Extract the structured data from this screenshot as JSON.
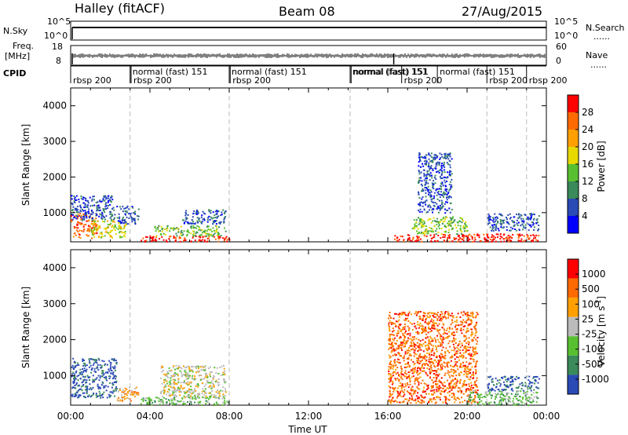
{
  "header": {
    "station": "Halley (fitACF)",
    "beam": "Beam 08",
    "date": "27/Aug/2015"
  },
  "strip_labels": {
    "nsky": "N.Sky",
    "nsky_ticks": [
      "10^5",
      "10^0"
    ],
    "nsearch": "N.Search",
    "nsearch_right_ticks": [
      "10^5",
      "10^0"
    ],
    "freq_line1": "Freq.",
    "freq_line2": "[MHz]",
    "freq_ticks": [
      "18",
      "8"
    ],
    "nave": "Nave",
    "nave_ticks": [
      "60",
      "0"
    ],
    "cpid": "CPID",
    "dots": "......"
  },
  "cpid_segments": [
    {
      "label": "rbsp 200",
      "row": 1
    },
    {
      "label": "normal (fast)  151",
      "row": 0
    },
    {
      "label": "rbsp 200",
      "row": 1
    },
    {
      "label": "normal (fast)  151",
      "row": 0
    },
    {
      "label": "rbsp 200",
      "row": 1
    },
    {
      "label": "normal (fast)  151",
      "row": 0
    },
    {
      "label": "normal (fast)  151",
      "row": 0
    },
    {
      "label": "rbsp 200",
      "row": 1
    },
    {
      "label": "normal (fast)  151",
      "row": 0
    },
    {
      "label": "rbsp 200",
      "row": 1
    },
    {
      "label": "rbsp 200",
      "row": 1
    }
  ],
  "chart_data": [
    {
      "type": "heatmap",
      "name": "power",
      "ylabel": "Slant Range [km]",
      "ylim": [
        180,
        4500
      ],
      "yticks": [
        "1000",
        "2000",
        "3000",
        "4000"
      ],
      "xlim_hours": [
        0,
        24
      ],
      "colorbar_label": "Power [dB]",
      "colorbar_ticks": [
        "4",
        "8",
        "12",
        "16",
        "20",
        "24",
        "28"
      ],
      "colors": [
        "#0000ff",
        "#2a4ab5",
        "#3a8a5a",
        "#58c030",
        "#e6d800",
        "#ffa000",
        "#ff6a00",
        "#ff0000"
      ],
      "regions": [
        {
          "t": [
            0.0,
            1.3
          ],
          "r": [
            300,
            1000
          ],
          "level": 6
        },
        {
          "t": [
            0.0,
            2.2
          ],
          "r": [
            800,
            1500
          ],
          "level": 1
        },
        {
          "t": [
            1.0,
            2.8
          ],
          "r": [
            300,
            800
          ],
          "level": 4
        },
        {
          "t": [
            2.3,
            3.4
          ],
          "r": [
            700,
            1200
          ],
          "level": 1
        },
        {
          "t": [
            3.5,
            8.0
          ],
          "r": [
            200,
            360
          ],
          "level": 7
        },
        {
          "t": [
            4.2,
            7.8
          ],
          "r": [
            360,
            650
          ],
          "level": 3
        },
        {
          "t": [
            5.6,
            7.8
          ],
          "r": [
            700,
            1100
          ],
          "level": 1
        },
        {
          "t": [
            16.3,
            23.6
          ],
          "r": [
            200,
            420
          ],
          "level": 7
        },
        {
          "t": [
            17.2,
            20.0
          ],
          "r": [
            420,
            900
          ],
          "level": 3
        },
        {
          "t": [
            17.5,
            19.2
          ],
          "r": [
            1000,
            2700
          ],
          "level": 1
        },
        {
          "t": [
            21.0,
            23.6
          ],
          "r": [
            500,
            1000
          ],
          "level": 1
        }
      ]
    },
    {
      "type": "heatmap",
      "name": "velocity",
      "ylabel": "Slant Range [km]",
      "ylim": [
        180,
        4500
      ],
      "yticks": [
        "1000",
        "2000",
        "3000",
        "4000"
      ],
      "xlim_hours": [
        0,
        24
      ],
      "colorbar_label": "Velocity [m s",
      "colorbar_unit_sup": "-1",
      "colorbar_unit_close": "]",
      "colorbar_ticks": [
        "1000",
        "500",
        "100",
        "25",
        "-25",
        "-100",
        "-500",
        "-1000"
      ],
      "colors": [
        "#2a4ab5",
        "#3a8a5a",
        "#58c030",
        "#bbbbbb",
        "#ffa000",
        "#ff6a00",
        "#ff0000"
      ],
      "regions": [
        {
          "t": [
            0.0,
            2.3
          ],
          "r": [
            400,
            1500
          ],
          "level": 0
        },
        {
          "t": [
            2.3,
            3.4
          ],
          "r": [
            300,
            700
          ],
          "level": 4
        },
        {
          "t": [
            3.5,
            8.0
          ],
          "r": [
            200,
            420
          ],
          "level": 2
        },
        {
          "t": [
            4.5,
            7.8
          ],
          "r": [
            400,
            1300
          ],
          "level": 3
        },
        {
          "t": [
            16.0,
            20.5
          ],
          "r": [
            250,
            2800
          ],
          "level": 5
        },
        {
          "t": [
            20.0,
            23.6
          ],
          "r": [
            200,
            600
          ],
          "level": 2
        },
        {
          "t": [
            21.0,
            23.6
          ],
          "r": [
            600,
            1000
          ],
          "level": 0
        }
      ]
    }
  ],
  "xaxis": {
    "ticks": [
      "00:00",
      "04:00",
      "08:00",
      "12:00",
      "16:00",
      "20:00",
      "00:00"
    ],
    "label": "Time UT"
  }
}
